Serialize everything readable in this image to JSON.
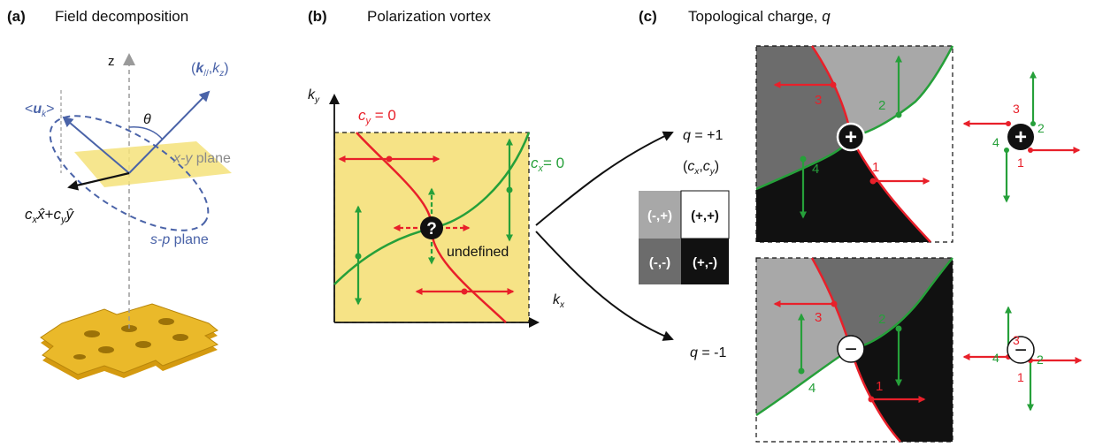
{
  "panels": {
    "a": {
      "letter": "(a)",
      "title": "Field decomposition"
    },
    "b": {
      "letter": "(b)",
      "title": "Polarization vortex"
    },
    "c": {
      "letter": "(c)",
      "title": "Topological charge, ",
      "title_var": "q"
    }
  },
  "panel_a": {
    "z_label": "z",
    "k_vector": {
      "open": "(",
      "k": "k",
      "sub_par": "//",
      "comma": ",",
      "kz": "k",
      "sub_z": "z",
      "close": ")"
    },
    "theta": "θ",
    "xy_plane": {
      "var": "x-y",
      "word": " plane"
    },
    "sp_plane": {
      "var": "s-p",
      "word": " plane"
    },
    "u_k": {
      "open": "<",
      "u": "u",
      "sub": "k",
      "close": ">"
    },
    "projection": {
      "c1": "c",
      "s1": "x",
      "x": "x̂",
      "plus": "+",
      "c2": "c",
      "s2": "y",
      "y": "ŷ"
    },
    "colors": {
      "vector": "#4a63a8",
      "plane": "#f4e27a",
      "slab": "#d8a318",
      "projection": "#111111"
    }
  },
  "panel_b": {
    "ky": {
      "k": "k",
      "sub": "y"
    },
    "kx": {
      "k": "k",
      "sub": "x"
    },
    "cy0": {
      "c": "c",
      "sub": "y",
      "rest": " = 0"
    },
    "cx0": {
      "c": "c",
      "sub": "x",
      "rest": "= 0"
    },
    "singular_symbol": "?",
    "undefined": "undefined",
    "colors": {
      "background": "#f6e386",
      "cy_curve": "#e8202a",
      "cx_curve": "#26a03a"
    }
  },
  "legend": {
    "header": {
      "open": "(",
      "c1": "c",
      "s1": "x",
      "comma": ",",
      "c2": "c",
      "s2": "y",
      "close": ")"
    },
    "cells": [
      {
        "label": "(-,+)",
        "fill": "#a8a8a8",
        "text": "#ffffff"
      },
      {
        "label": "(+,+)",
        "fill": "#ffffff",
        "text": "#111111"
      },
      {
        "label": "(-,-)",
        "fill": "#6c6c6c",
        "text": "#ffffff"
      },
      {
        "label": "(+,-)",
        "fill": "#111111",
        "text": "#ffffff"
      }
    ]
  },
  "charges": [
    {
      "q": "q",
      "value": " = +1",
      "symbol": "+",
      "labels": [
        "1",
        "2",
        "3",
        "4"
      ]
    },
    {
      "q": "q",
      "value": " = -1",
      "symbol": "−",
      "labels": [
        "1",
        "2",
        "3",
        "4"
      ]
    }
  ]
}
